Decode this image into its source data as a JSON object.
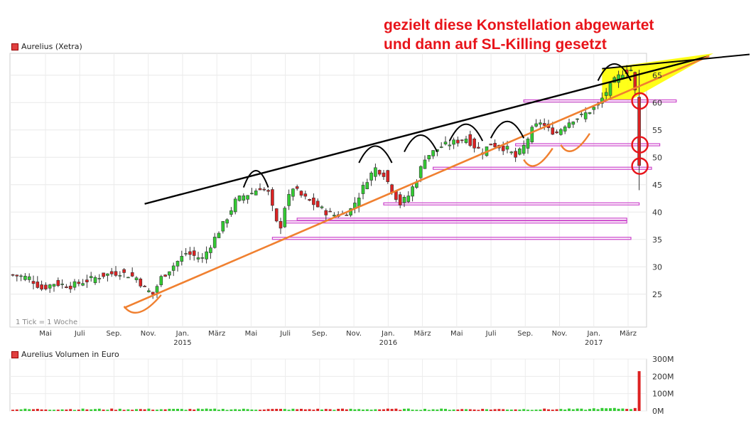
{
  "headline": {
    "line1": "gezielt diese Konstellation abgewartet",
    "line2": "und dann auf SL-Killing gesetzt"
  },
  "price_legend": "Aurelius (Xetra)",
  "volume_legend": "Aurelius Volumen in Euro",
  "tick_note": "1 Tick = 1 Woche",
  "colors": {
    "up": "#33cc33",
    "down": "#dd2222",
    "trend_black": "#000000",
    "trend_orange": "#f08030",
    "support_magenta": "#cc44cc",
    "highlight_yellow": "#ffff00",
    "annotation_red": "#e8141a"
  },
  "chart_data": [
    {
      "type": "candlestick",
      "title": "Aurelius (Xetra)",
      "interval": "1 Tick = 1 Woche",
      "ylim": [
        19,
        69
      ],
      "yticks": [
        25,
        30,
        35,
        40,
        45,
        50,
        55,
        60,
        65
      ],
      "xticks": [
        {
          "label": "Mai",
          "year": ""
        },
        {
          "label": "Juli",
          "year": ""
        },
        {
          "label": "Sep.",
          "year": ""
        },
        {
          "label": "Nov.",
          "year": ""
        },
        {
          "label": "Jan.",
          "year": "2015"
        },
        {
          "label": "März",
          "year": ""
        },
        {
          "label": "Mai",
          "year": ""
        },
        {
          "label": "Juli",
          "year": ""
        },
        {
          "label": "Sep.",
          "year": ""
        },
        {
          "label": "Nov.",
          "year": ""
        },
        {
          "label": "Jan.",
          "year": "2016"
        },
        {
          "label": "März",
          "year": ""
        },
        {
          "label": "Mai",
          "year": ""
        },
        {
          "label": "Juli",
          "year": ""
        },
        {
          "label": "Sep.",
          "year": ""
        },
        {
          "label": "Nov.",
          "year": ""
        },
        {
          "label": "Jan.",
          "year": "2017"
        },
        {
          "label": "März",
          "year": ""
        }
      ],
      "grid": true,
      "anchors": [
        [
          0,
          28.5
        ],
        [
          4,
          28
        ],
        [
          7,
          26
        ],
        [
          10,
          27
        ],
        [
          14,
          26.5
        ],
        [
          18,
          27.5
        ],
        [
          22,
          28.5
        ],
        [
          26,
          29
        ],
        [
          30,
          28
        ],
        [
          32,
          26
        ],
        [
          34,
          25
        ],
        [
          36,
          28
        ],
        [
          38,
          29.5
        ],
        [
          40,
          31
        ],
        [
          42,
          32.5
        ],
        [
          44,
          32
        ],
        [
          46,
          31.5
        ],
        [
          48,
          34
        ],
        [
          50,
          36.5
        ],
        [
          52,
          39
        ],
        [
          54,
          42
        ],
        [
          56,
          43
        ],
        [
          58,
          43.5
        ],
        [
          60,
          44.5
        ],
        [
          62,
          43.5
        ],
        [
          64,
          38
        ],
        [
          65,
          37.5
        ],
        [
          66,
          41
        ],
        [
          68,
          44.5
        ],
        [
          70,
          43
        ],
        [
          72,
          42
        ],
        [
          74,
          41
        ],
        [
          76,
          40
        ],
        [
          78,
          39.5
        ],
        [
          80,
          39.5
        ],
        [
          82,
          40.5
        ],
        [
          84,
          43
        ],
        [
          86,
          46
        ],
        [
          88,
          48
        ],
        [
          90,
          47
        ],
        [
          92,
          44
        ],
        [
          94,
          41.5
        ],
        [
          96,
          43
        ],
        [
          98,
          46
        ],
        [
          100,
          50
        ],
        [
          102,
          51
        ],
        [
          104,
          52
        ],
        [
          106,
          52.5
        ],
        [
          108,
          53
        ],
        [
          110,
          53.5
        ],
        [
          112,
          52
        ],
        [
          114,
          51
        ],
        [
          116,
          52.5
        ],
        [
          118,
          52
        ],
        [
          120,
          51.5
        ],
        [
          122,
          50
        ],
        [
          124,
          52
        ],
        [
          126,
          55
        ],
        [
          128,
          56.5
        ],
        [
          130,
          55
        ],
        [
          132,
          54.5
        ],
        [
          134,
          56
        ],
        [
          136,
          57
        ],
        [
          138,
          57.5
        ],
        [
          140,
          58.5
        ],
        [
          142,
          59.5
        ],
        [
          144,
          62
        ],
        [
          146,
          64
        ],
        [
          148,
          65.5
        ],
        [
          150,
          66
        ],
        [
          151,
          62
        ],
        [
          152,
          48
        ]
      ],
      "trendlines": [
        {
          "color": "black",
          "from": [
            32,
            41.5
          ],
          "to": [
            169,
            68.5
          ]
        },
        {
          "color": "orange",
          "from": [
            27,
            22.5
          ],
          "to": [
            169,
            68.5
          ]
        }
      ],
      "support_levels": [
        35.2,
        38.2,
        38.7,
        41.5,
        48,
        52.3,
        60.3
      ],
      "circle_levels": [
        60.3,
        52.3,
        48.4
      ]
    },
    {
      "type": "bar",
      "title": "Aurelius Volumen in Euro",
      "ylim": [
        0,
        300
      ],
      "yticks": [
        "0M",
        "100M",
        "200M",
        "300M"
      ],
      "spike_value": 230
    }
  ]
}
